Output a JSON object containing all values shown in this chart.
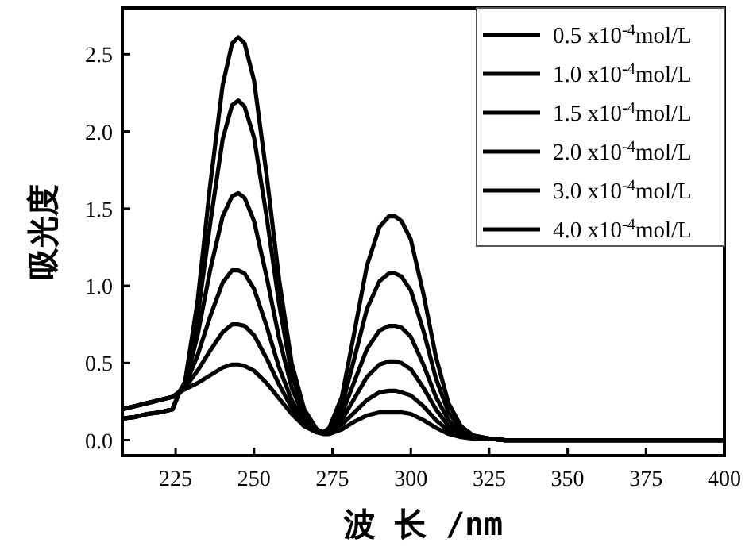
{
  "chart_data": {
    "type": "line",
    "xlabel": "波 长 /nm",
    "ylabel": "吸光度",
    "xlim": [
      208,
      400
    ],
    "ylim": [
      -0.1,
      2.8
    ],
    "xticks": [
      225,
      250,
      275,
      300,
      325,
      350,
      375,
      400
    ],
    "yticks": [
      {
        "value": 0,
        "label": "0.0"
      },
      0.5,
      {
        "value": 1,
        "label": "1.0"
      },
      1.5,
      {
        "value": 2,
        "label": "2.0"
      },
      2.5
    ],
    "x": [
      208,
      212,
      216,
      220,
      224,
      226,
      228,
      232,
      236,
      240,
      243,
      245,
      247,
      250,
      254,
      258,
      262,
      266,
      270,
      272,
      274,
      278,
      282,
      286,
      290,
      293,
      295,
      297,
      300,
      304,
      308,
      312,
      316,
      320,
      325,
      330,
      350,
      375,
      400
    ],
    "legend": "top right",
    "series": [
      {
        "name": "0.5 x10$^{-4}$mol/L",
        "color": "#000000",
        "values": [
          0.2,
          0.22,
          0.24,
          0.26,
          0.28,
          0.31,
          0.33,
          0.37,
          0.42,
          0.47,
          0.49,
          0.49,
          0.48,
          0.45,
          0.37,
          0.27,
          0.17,
          0.09,
          0.05,
          0.04,
          0.04,
          0.07,
          0.12,
          0.16,
          0.18,
          0.18,
          0.18,
          0.18,
          0.17,
          0.13,
          0.08,
          0.04,
          0.02,
          0.01,
          0.01,
          0,
          0,
          0,
          0
        ]
      },
      {
        "name": "1.0 x10$^{-4}$mol/L",
        "color": "#000000",
        "values": [
          0.14,
          0.15,
          0.17,
          0.18,
          0.2,
          0.3,
          0.34,
          0.45,
          0.58,
          0.7,
          0.75,
          0.75,
          0.74,
          0.68,
          0.53,
          0.36,
          0.21,
          0.11,
          0.06,
          0.05,
          0.06,
          0.1,
          0.18,
          0.26,
          0.31,
          0.32,
          0.32,
          0.31,
          0.29,
          0.22,
          0.13,
          0.06,
          0.03,
          0.01,
          0.01,
          0,
          0,
          0,
          0
        ]
      },
      {
        "name": "1.5 x10$^{-4}$mol/L",
        "color": "#000000",
        "values": [
          0.2,
          0.22,
          0.24,
          0.26,
          0.28,
          0.31,
          0.35,
          0.55,
          0.8,
          1.02,
          1.1,
          1.1,
          1.08,
          0.98,
          0.74,
          0.47,
          0.26,
          0.12,
          0.06,
          0.05,
          0.06,
          0.13,
          0.27,
          0.41,
          0.49,
          0.51,
          0.51,
          0.5,
          0.46,
          0.34,
          0.2,
          0.09,
          0.04,
          0.02,
          0.01,
          0,
          0,
          0,
          0
        ]
      },
      {
        "name": "2.0 x10$^{-4}$mol/L",
        "color": "#000000",
        "values": [
          0.14,
          0.15,
          0.17,
          0.18,
          0.2,
          0.3,
          0.36,
          0.68,
          1.1,
          1.45,
          1.58,
          1.6,
          1.57,
          1.42,
          1.06,
          0.66,
          0.34,
          0.15,
          0.06,
          0.05,
          0.06,
          0.17,
          0.38,
          0.59,
          0.71,
          0.74,
          0.74,
          0.73,
          0.67,
          0.49,
          0.28,
          0.13,
          0.05,
          0.02,
          0.01,
          0,
          0,
          0,
          0
        ]
      },
      {
        "name": "3.0 x10$^{-4}$mol/L",
        "color": "#000000",
        "values": [
          0.2,
          0.22,
          0.24,
          0.26,
          0.28,
          0.31,
          0.37,
          0.8,
          1.4,
          1.95,
          2.17,
          2.2,
          2.16,
          1.96,
          1.45,
          0.88,
          0.43,
          0.18,
          0.07,
          0.05,
          0.07,
          0.22,
          0.53,
          0.85,
          1.03,
          1.08,
          1.08,
          1.06,
          0.97,
          0.71,
          0.4,
          0.18,
          0.07,
          0.03,
          0.01,
          0,
          0,
          0,
          0
        ]
      },
      {
        "name": "4.0 x10$^{-4}$mol/L",
        "color": "#000000",
        "values": [
          0.14,
          0.15,
          0.17,
          0.18,
          0.2,
          0.3,
          0.38,
          0.9,
          1.65,
          2.3,
          2.57,
          2.61,
          2.57,
          2.33,
          1.72,
          1.04,
          0.5,
          0.2,
          0.07,
          0.05,
          0.08,
          0.28,
          0.7,
          1.13,
          1.38,
          1.45,
          1.45,
          1.42,
          1.3,
          0.95,
          0.54,
          0.24,
          0.09,
          0.03,
          0.01,
          0,
          0,
          0,
          0
        ]
      }
    ]
  }
}
